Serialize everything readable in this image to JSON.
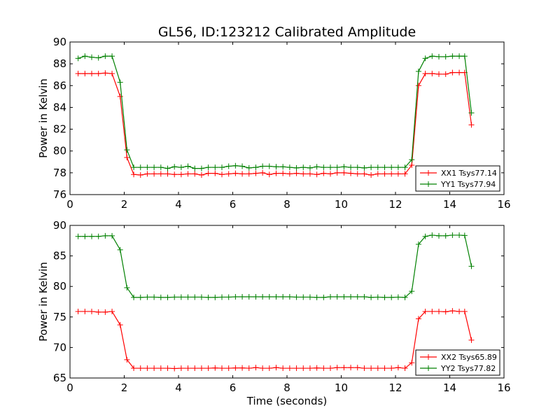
{
  "chart_data": [
    {
      "type": "line",
      "title": "GL56, ID:123212 Calibrated Amplitude",
      "xlabel": "",
      "ylabel": "Power in Kelvin",
      "xlim": [
        0,
        16
      ],
      "ylim": [
        76,
        90
      ],
      "xticks": [
        0,
        2,
        4,
        6,
        8,
        10,
        12,
        14,
        16
      ],
      "yticks": [
        76,
        78,
        80,
        82,
        84,
        86,
        88,
        90
      ],
      "grid": false,
      "legend_position": "lower-right",
      "x": [
        0.3,
        0.55,
        0.8,
        1.05,
        1.3,
        1.55,
        1.85,
        2.1,
        2.35,
        2.6,
        2.85,
        3.1,
        3.35,
        3.6,
        3.85,
        4.1,
        4.35,
        4.6,
        4.85,
        5.1,
        5.35,
        5.6,
        5.85,
        6.1,
        6.35,
        6.6,
        6.85,
        7.1,
        7.35,
        7.6,
        7.85,
        8.1,
        8.35,
        8.6,
        8.85,
        9.1,
        9.35,
        9.6,
        9.85,
        10.1,
        10.35,
        10.6,
        10.85,
        11.1,
        11.35,
        11.6,
        11.85,
        12.1,
        12.35,
        12.6,
        12.85,
        13.1,
        13.35,
        13.6,
        13.85,
        14.1,
        14.35,
        14.55,
        14.8
      ],
      "series": [
        {
          "name": "XX1 Tsys77.14",
          "color": "#ff0000",
          "values": [
            87.1,
            87.1,
            87.1,
            87.1,
            87.15,
            87.1,
            85.0,
            79.4,
            77.85,
            77.8,
            77.9,
            77.9,
            77.9,
            77.9,
            77.85,
            77.85,
            77.9,
            77.9,
            77.8,
            77.95,
            77.95,
            77.85,
            77.9,
            77.95,
            77.9,
            77.9,
            77.95,
            78.0,
            77.85,
            77.95,
            77.95,
            77.9,
            77.95,
            77.9,
            77.9,
            77.85,
            77.95,
            77.9,
            78.0,
            78.0,
            77.95,
            77.9,
            77.9,
            77.8,
            77.9,
            77.9,
            77.9,
            77.9,
            77.9,
            78.7,
            86.0,
            87.1,
            87.1,
            87.05,
            87.05,
            87.2,
            87.2,
            87.2,
            82.4
          ]
        },
        {
          "name": "YY1 Tsys77.94",
          "color": "#008000",
          "values": [
            88.5,
            88.7,
            88.6,
            88.55,
            88.7,
            88.7,
            86.3,
            80.1,
            78.5,
            78.5,
            78.5,
            78.5,
            78.5,
            78.4,
            78.55,
            78.5,
            78.6,
            78.4,
            78.4,
            78.5,
            78.5,
            78.5,
            78.6,
            78.65,
            78.6,
            78.45,
            78.5,
            78.6,
            78.6,
            78.55,
            78.55,
            78.5,
            78.45,
            78.5,
            78.45,
            78.55,
            78.5,
            78.5,
            78.5,
            78.55,
            78.5,
            78.5,
            78.45,
            78.5,
            78.5,
            78.5,
            78.5,
            78.5,
            78.5,
            79.2,
            87.3,
            88.5,
            88.7,
            88.65,
            88.65,
            88.7,
            88.7,
            88.7,
            83.5
          ]
        }
      ]
    },
    {
      "type": "line",
      "title": "",
      "xlabel": "Time (seconds)",
      "ylabel": "Power in Kelvin",
      "xlim": [
        0,
        16
      ],
      "ylim": [
        65,
        90
      ],
      "xticks": [
        0,
        2,
        4,
        6,
        8,
        10,
        12,
        14,
        16
      ],
      "yticks": [
        65,
        70,
        75,
        80,
        85,
        90
      ],
      "grid": false,
      "legend_position": "lower-right",
      "x": [
        0.3,
        0.55,
        0.8,
        1.05,
        1.3,
        1.55,
        1.85,
        2.1,
        2.35,
        2.6,
        2.85,
        3.1,
        3.35,
        3.6,
        3.85,
        4.1,
        4.35,
        4.6,
        4.85,
        5.1,
        5.35,
        5.6,
        5.85,
        6.1,
        6.35,
        6.6,
        6.85,
        7.1,
        7.35,
        7.6,
        7.85,
        8.1,
        8.35,
        8.6,
        8.85,
        9.1,
        9.35,
        9.6,
        9.85,
        10.1,
        10.35,
        10.6,
        10.85,
        11.1,
        11.35,
        11.6,
        11.85,
        12.1,
        12.35,
        12.6,
        12.85,
        13.1,
        13.35,
        13.6,
        13.85,
        14.1,
        14.35,
        14.55,
        14.8
      ],
      "series": [
        {
          "name": "XX2 Tsys65.89",
          "color": "#ff0000",
          "values": [
            75.9,
            75.9,
            75.9,
            75.8,
            75.8,
            75.9,
            73.7,
            68.0,
            66.6,
            66.6,
            66.6,
            66.6,
            66.6,
            66.6,
            66.55,
            66.6,
            66.6,
            66.6,
            66.6,
            66.6,
            66.65,
            66.6,
            66.6,
            66.65,
            66.65,
            66.6,
            66.7,
            66.6,
            66.6,
            66.7,
            66.6,
            66.6,
            66.6,
            66.6,
            66.6,
            66.65,
            66.6,
            66.6,
            66.7,
            66.7,
            66.7,
            66.7,
            66.6,
            66.6,
            66.6,
            66.6,
            66.6,
            66.7,
            66.6,
            67.5,
            74.7,
            75.9,
            75.9,
            75.9,
            75.85,
            76.0,
            75.9,
            75.9,
            71.2
          ]
        },
        {
          "name": "YY2 Tsys77.82",
          "color": "#008000",
          "values": [
            88.2,
            88.2,
            88.2,
            88.2,
            88.3,
            88.3,
            86.0,
            79.8,
            78.2,
            78.2,
            78.25,
            78.25,
            78.2,
            78.2,
            78.25,
            78.25,
            78.25,
            78.25,
            78.25,
            78.2,
            78.2,
            78.25,
            78.25,
            78.3,
            78.3,
            78.3,
            78.3,
            78.3,
            78.3,
            78.3,
            78.3,
            78.3,
            78.25,
            78.25,
            78.25,
            78.2,
            78.2,
            78.3,
            78.3,
            78.3,
            78.3,
            78.3,
            78.3,
            78.2,
            78.25,
            78.2,
            78.2,
            78.25,
            78.2,
            79.2,
            86.9,
            88.2,
            88.4,
            88.3,
            88.3,
            88.4,
            88.4,
            88.35,
            83.3
          ]
        }
      ]
    }
  ]
}
